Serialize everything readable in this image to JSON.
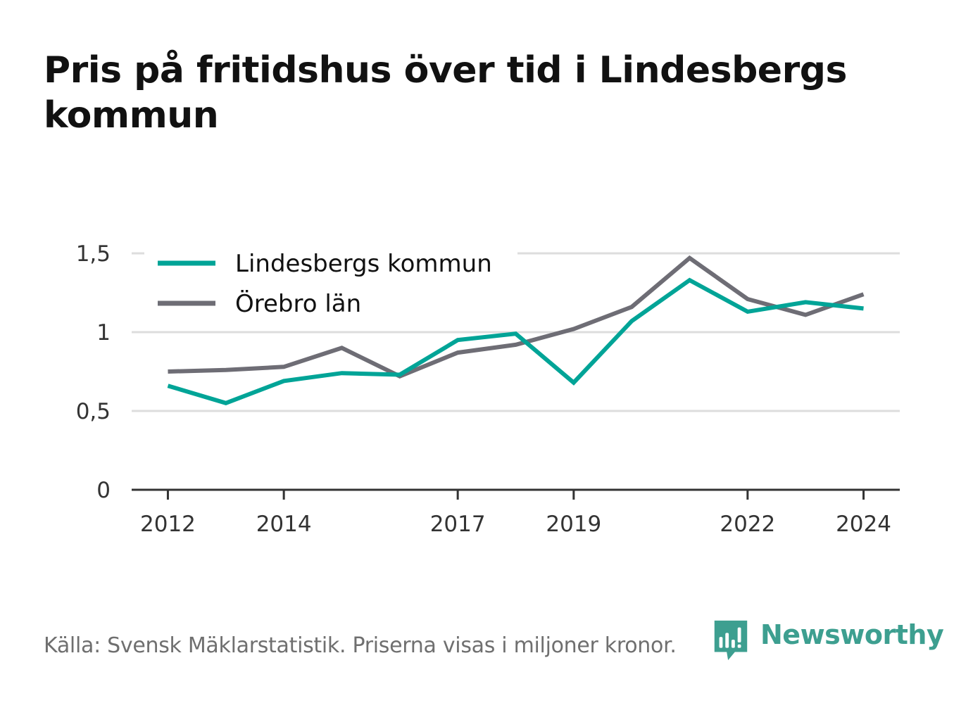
{
  "header": {
    "title": "Pris på fritidshus över tid i Lindesbergs kommun"
  },
  "footer": {
    "source": "Källa: Svensk Mäklarstatistik. Priserna visas i miljoner kronor.",
    "brand": "Newsworthy"
  },
  "colors": {
    "lindesberg": "#00a497",
    "orebro": "#6e6d75",
    "grid": "#dddddd",
    "axis": "#333333",
    "brand": "#3d9f90"
  },
  "chart_data": {
    "type": "line",
    "title": "Pris på fritidshus över tid i Lindesbergs kommun",
    "xlabel": "",
    "ylabel": "",
    "x": [
      2012,
      2013,
      2014,
      2015,
      2016,
      2017,
      2018,
      2019,
      2020,
      2021,
      2022,
      2023,
      2024
    ],
    "xticks": [
      2012,
      2014,
      2017,
      2019,
      2022,
      2024
    ],
    "yticks": [
      0,
      0.5,
      1,
      1.5
    ],
    "ytick_labels": [
      "0",
      "0,5",
      "1",
      "1,5"
    ],
    "ylim": [
      0,
      1.5
    ],
    "grid": true,
    "legend_position": "top-left",
    "series": [
      {
        "name": "Lindesbergs kommun",
        "color": "#00a497",
        "values": [
          0.66,
          0.55,
          0.69,
          0.74,
          0.73,
          0.95,
          0.99,
          0.68,
          1.07,
          1.33,
          1.13,
          1.19,
          1.15
        ]
      },
      {
        "name": "Örebro län",
        "color": "#6e6d75",
        "values": [
          0.75,
          0.76,
          0.78,
          0.9,
          0.72,
          0.87,
          0.92,
          1.02,
          1.16,
          1.47,
          1.21,
          1.11,
          1.24
        ]
      }
    ]
  }
}
